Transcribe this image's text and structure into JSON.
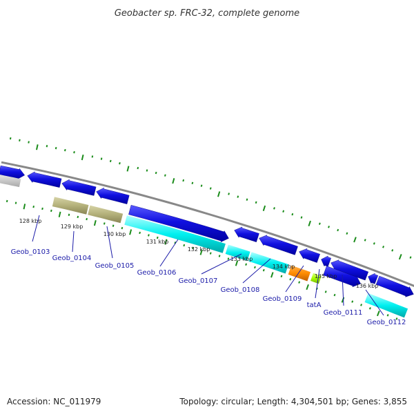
{
  "title": "Geobacter sp. FRC-32, complete genome",
  "footer": {
    "accession": "Accession: NC_011979",
    "summary": "Topology: circular; Length: 4,304,501 bp; Genes: 3,855"
  },
  "colors": {
    "forward_cds": "#1414e6",
    "reverse_cds": "#00ffff",
    "rna": "#b3b07a",
    "orange": "#ff8c00",
    "lime": "#a6ff00",
    "grey": "#c8c8c8",
    "backbone": "#888888",
    "ticks": "#1a8c1a",
    "labels": "#1a1aa8"
  },
  "kbp_labels": [
    "128 kbp",
    "129 kbp",
    "130 kbp",
    "131 kbp",
    "132 kbp",
    "133 kbp",
    "134 kbp",
    "135 kbp",
    "136 kbp"
  ],
  "gene_labels": [
    "Geob_0103",
    "Geob_0104",
    "Geob_0105",
    "Geob_0106",
    "Geob_0107",
    "Geob_0108",
    "Geob_0109",
    "tatA",
    "Geob_0111",
    "Geob_0112"
  ]
}
